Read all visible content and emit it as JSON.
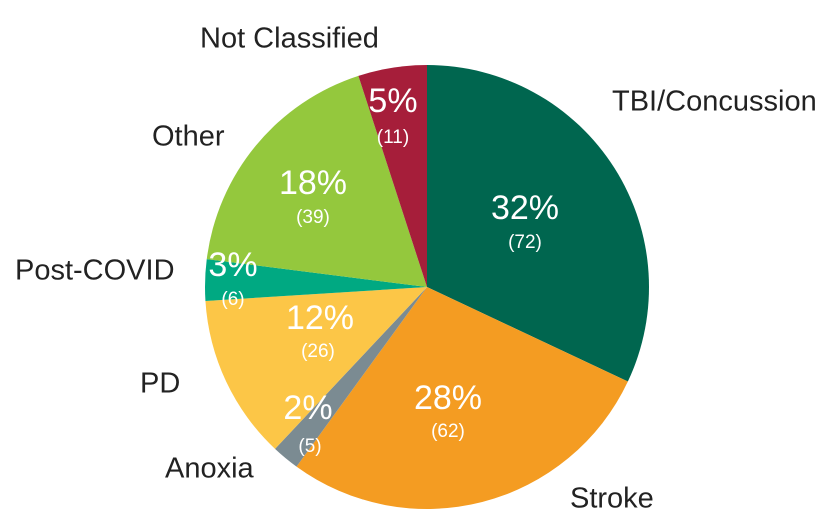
{
  "chart_data": {
    "type": "pie",
    "categories": [
      "TBI/Concussion",
      "Stroke",
      "Anoxia",
      "PD",
      "Post-COVID",
      "Other",
      "Not Classified"
    ],
    "values": [
      32,
      28,
      2,
      12,
      3,
      18,
      5
    ],
    "value_labels": [
      "32%",
      "28%",
      "2%",
      "12%",
      "3%",
      "18%",
      "5%"
    ],
    "counts": [
      72,
      62,
      5,
      26,
      6,
      39,
      11
    ],
    "count_labels": [
      "(72)",
      "(62)",
      "(5)",
      "(26)",
      "(6)",
      "(39)",
      "(11)"
    ],
    "colors": [
      "#00664f",
      "#f49c22",
      "#7b8b92",
      "#fcc647",
      "#00a982",
      "#94c83d",
      "#a61e3a"
    ]
  }
}
